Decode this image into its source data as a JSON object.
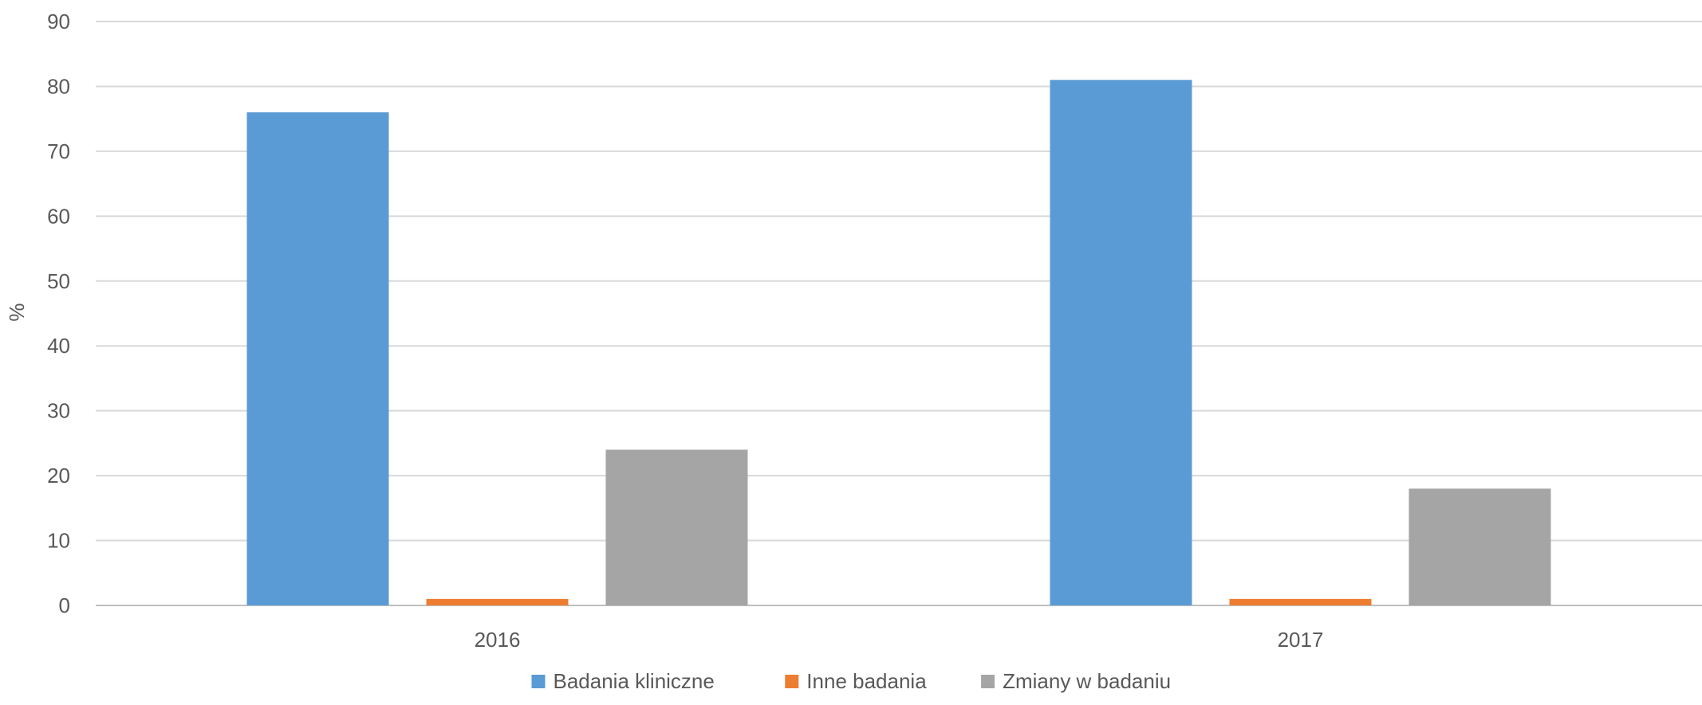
{
  "chart_data": {
    "type": "bar",
    "categories": [
      "2016",
      "2017"
    ],
    "series": [
      {
        "name": "Badania kliniczne",
        "values": [
          76,
          81
        ],
        "color": "#5b9bd5"
      },
      {
        "name": "Inne badania",
        "values": [
          1,
          1
        ],
        "color": "#ed7d31"
      },
      {
        "name": "Zmiany w badaniu",
        "values": [
          24,
          18
        ],
        "color": "#a5a5a5"
      }
    ],
    "title": "",
    "xlabel": "",
    "ylabel": "%",
    "ylim": [
      0,
      90
    ],
    "yticks": [
      "0",
      "10",
      "20",
      "30",
      "40",
      "50",
      "60",
      "70",
      "80",
      "90"
    ],
    "grid": true,
    "legend_position": "bottom"
  }
}
